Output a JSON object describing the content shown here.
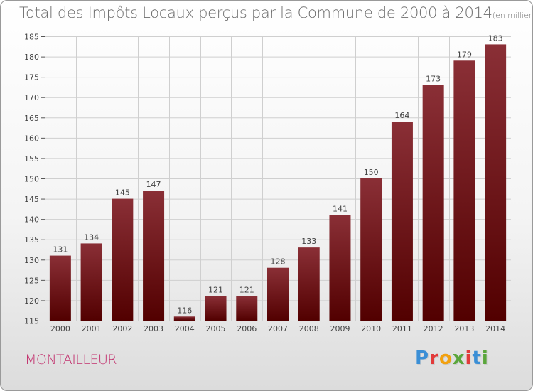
{
  "title": "Total des Impôts Locaux perçus par la Commune de 2000 à 2014",
  "title_unit": "(en milliers d'€)",
  "commune": "MONTAILLEUR",
  "logo_text": "Proxiti",
  "logo_colors": [
    "#3b8fd6",
    "#e23b3b",
    "#f2a10f",
    "#5aa63b",
    "#e23b3b",
    "#3b8fd6",
    "#5aa63b"
  ],
  "colors": {
    "bar_top": "#8a2f36",
    "bar_bottom": "#520000",
    "commune": "#c2306d",
    "grid": "#cfcfcf"
  },
  "chart_data": {
    "type": "bar",
    "title": "Total des Impôts Locaux perçus par la Commune de 2000 à 2014",
    "xlabel": "",
    "ylabel": "",
    "categories": [
      "2000",
      "2001",
      "2002",
      "2003",
      "2004",
      "2005",
      "2006",
      "2007",
      "2008",
      "2009",
      "2010",
      "2011",
      "2012",
      "2013",
      "2014"
    ],
    "values": [
      131,
      134,
      145,
      147,
      116,
      121,
      121,
      128,
      133,
      141,
      150,
      164,
      173,
      179,
      183
    ],
    "ylim": [
      115,
      185
    ],
    "yticks": [
      115,
      120,
      125,
      130,
      135,
      140,
      145,
      150,
      155,
      160,
      165,
      170,
      175,
      180,
      185
    ],
    "grid": true,
    "data_labels": true
  }
}
